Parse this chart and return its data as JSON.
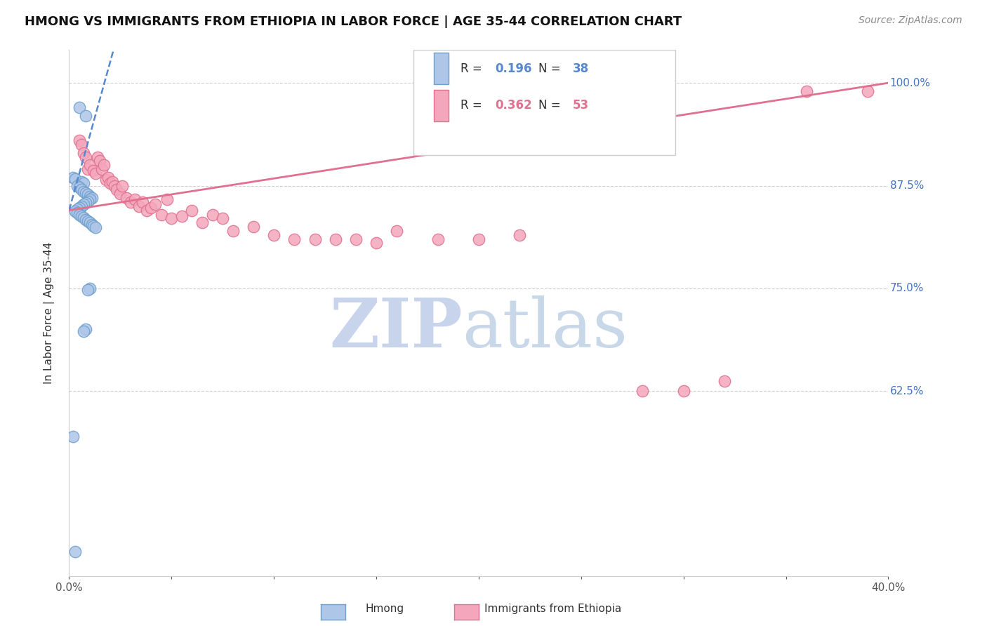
{
  "title": "HMONG VS IMMIGRANTS FROM ETHIOPIA IN LABOR FORCE | AGE 35-44 CORRELATION CHART",
  "source": "Source: ZipAtlas.com",
  "ylabel": "In Labor Force | Age 35-44",
  "xlim": [
    0.0,
    0.4
  ],
  "ylim": [
    0.4,
    1.04
  ],
  "xticks": [
    0.0,
    0.05,
    0.1,
    0.15,
    0.2,
    0.25,
    0.3,
    0.35,
    0.4
  ],
  "xtick_labels": [
    "0.0%",
    "",
    "",
    "",
    "",
    "",
    "",
    "",
    "40.0%"
  ],
  "ytick_positions": [
    0.625,
    0.75,
    0.875,
    1.0
  ],
  "ytick_labels": [
    "62.5%",
    "75.0%",
    "87.5%",
    "100.0%"
  ],
  "ytick_color": "#4472c4",
  "hmong_color": "#aec6e8",
  "ethiopia_color": "#f4a7bc",
  "hmong_edge": "#6fa0cc",
  "ethiopia_edge": "#e07090",
  "trend_hmong_color": "#5588cc",
  "trend_ethiopia_color": "#e07090",
  "R_hmong": 0.196,
  "N_hmong": 38,
  "R_ethiopia": 0.362,
  "N_ethiopia": 53,
  "watermark_zip_color": "#c8d4ec",
  "watermark_atlas_color": "#c8d8e8",
  "grid_color": "#d0d0d0",
  "background_color": "#ffffff",
  "hmong_x": [
    0.005,
    0.008,
    0.002,
    0.003,
    0.006,
    0.007,
    0.004,
    0.005,
    0.006,
    0.007,
    0.008,
    0.009,
    0.01,
    0.011,
    0.01,
    0.009,
    0.008,
    0.007,
    0.006,
    0.005,
    0.004,
    0.003,
    0.004,
    0.005,
    0.006,
    0.007,
    0.008,
    0.009,
    0.01,
    0.011,
    0.012,
    0.013,
    0.01,
    0.009,
    0.008,
    0.007,
    0.002,
    0.003
  ],
  "hmong_y": [
    0.97,
    0.96,
    0.885,
    0.883,
    0.88,
    0.878,
    0.875,
    0.873,
    0.87,
    0.868,
    0.866,
    0.864,
    0.862,
    0.86,
    0.858,
    0.856,
    0.854,
    0.852,
    0.85,
    0.848,
    0.846,
    0.844,
    0.842,
    0.84,
    0.838,
    0.836,
    0.834,
    0.832,
    0.83,
    0.828,
    0.826,
    0.824,
    0.75,
    0.748,
    0.7,
    0.698,
    0.57,
    0.43
  ],
  "ethiopia_x": [
    0.005,
    0.006,
    0.007,
    0.008,
    0.009,
    0.01,
    0.012,
    0.013,
    0.014,
    0.015,
    0.016,
    0.017,
    0.018,
    0.019,
    0.02,
    0.021,
    0.022,
    0.023,
    0.025,
    0.026,
    0.028,
    0.03,
    0.032,
    0.034,
    0.036,
    0.038,
    0.04,
    0.042,
    0.045,
    0.048,
    0.05,
    0.055,
    0.06,
    0.065,
    0.07,
    0.075,
    0.08,
    0.09,
    0.1,
    0.11,
    0.12,
    0.13,
    0.14,
    0.15,
    0.16,
    0.18,
    0.2,
    0.22,
    0.28,
    0.3,
    0.32,
    0.36,
    0.39
  ],
  "ethiopia_y": [
    0.93,
    0.925,
    0.915,
    0.91,
    0.895,
    0.9,
    0.893,
    0.89,
    0.91,
    0.905,
    0.895,
    0.9,
    0.882,
    0.885,
    0.878,
    0.88,
    0.875,
    0.87,
    0.865,
    0.875,
    0.86,
    0.855,
    0.858,
    0.85,
    0.855,
    0.845,
    0.848,
    0.852,
    0.84,
    0.858,
    0.835,
    0.838,
    0.845,
    0.83,
    0.84,
    0.835,
    0.82,
    0.825,
    0.815,
    0.81,
    0.81,
    0.81,
    0.81,
    0.805,
    0.82,
    0.81,
    0.81,
    0.815,
    0.625,
    0.625,
    0.637,
    0.99,
    0.99
  ]
}
